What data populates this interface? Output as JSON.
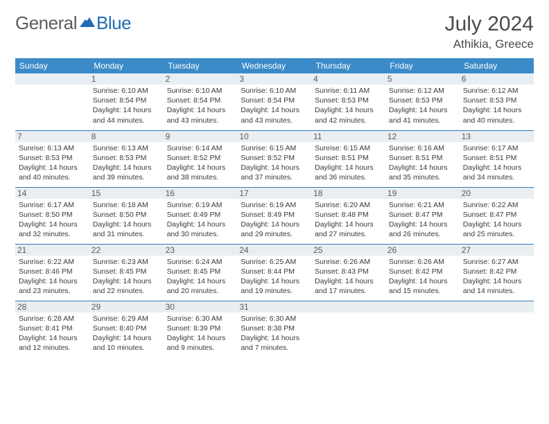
{
  "brand": {
    "text1": "General",
    "text2": "Blue"
  },
  "title": "July 2024",
  "location": "Athikia, Greece",
  "colors": {
    "header_bg": "#3b8bc8",
    "header_text": "#ffffff",
    "daynum_bg": "#e9eef2",
    "row_divider": "#2f7ab5",
    "body_text": "#3a3a3a",
    "brand_gray": "#5c5c5c",
    "brand_blue": "#1f6db3",
    "page_bg": "#ffffff"
  },
  "daysOfWeek": [
    "Sunday",
    "Monday",
    "Tuesday",
    "Wednesday",
    "Thursday",
    "Friday",
    "Saturday"
  ],
  "weeks": [
    [
      null,
      {
        "n": "1",
        "sr": "6:10 AM",
        "ss": "8:54 PM",
        "dl": "14 hours and 44 minutes."
      },
      {
        "n": "2",
        "sr": "6:10 AM",
        "ss": "8:54 PM",
        "dl": "14 hours and 43 minutes."
      },
      {
        "n": "3",
        "sr": "6:10 AM",
        "ss": "8:54 PM",
        "dl": "14 hours and 43 minutes."
      },
      {
        "n": "4",
        "sr": "6:11 AM",
        "ss": "8:53 PM",
        "dl": "14 hours and 42 minutes."
      },
      {
        "n": "5",
        "sr": "6:12 AM",
        "ss": "8:53 PM",
        "dl": "14 hours and 41 minutes."
      },
      {
        "n": "6",
        "sr": "6:12 AM",
        "ss": "8:53 PM",
        "dl": "14 hours and 40 minutes."
      }
    ],
    [
      {
        "n": "7",
        "sr": "6:13 AM",
        "ss": "8:53 PM",
        "dl": "14 hours and 40 minutes."
      },
      {
        "n": "8",
        "sr": "6:13 AM",
        "ss": "8:53 PM",
        "dl": "14 hours and 39 minutes."
      },
      {
        "n": "9",
        "sr": "6:14 AM",
        "ss": "8:52 PM",
        "dl": "14 hours and 38 minutes."
      },
      {
        "n": "10",
        "sr": "6:15 AM",
        "ss": "8:52 PM",
        "dl": "14 hours and 37 minutes."
      },
      {
        "n": "11",
        "sr": "6:15 AM",
        "ss": "8:51 PM",
        "dl": "14 hours and 36 minutes."
      },
      {
        "n": "12",
        "sr": "6:16 AM",
        "ss": "8:51 PM",
        "dl": "14 hours and 35 minutes."
      },
      {
        "n": "13",
        "sr": "6:17 AM",
        "ss": "8:51 PM",
        "dl": "14 hours and 34 minutes."
      }
    ],
    [
      {
        "n": "14",
        "sr": "6:17 AM",
        "ss": "8:50 PM",
        "dl": "14 hours and 32 minutes."
      },
      {
        "n": "15",
        "sr": "6:18 AM",
        "ss": "8:50 PM",
        "dl": "14 hours and 31 minutes."
      },
      {
        "n": "16",
        "sr": "6:19 AM",
        "ss": "8:49 PM",
        "dl": "14 hours and 30 minutes."
      },
      {
        "n": "17",
        "sr": "6:19 AM",
        "ss": "8:49 PM",
        "dl": "14 hours and 29 minutes."
      },
      {
        "n": "18",
        "sr": "6:20 AM",
        "ss": "8:48 PM",
        "dl": "14 hours and 27 minutes."
      },
      {
        "n": "19",
        "sr": "6:21 AM",
        "ss": "8:47 PM",
        "dl": "14 hours and 26 minutes."
      },
      {
        "n": "20",
        "sr": "6:22 AM",
        "ss": "8:47 PM",
        "dl": "14 hours and 25 minutes."
      }
    ],
    [
      {
        "n": "21",
        "sr": "6:22 AM",
        "ss": "8:46 PM",
        "dl": "14 hours and 23 minutes."
      },
      {
        "n": "22",
        "sr": "6:23 AM",
        "ss": "8:45 PM",
        "dl": "14 hours and 22 minutes."
      },
      {
        "n": "23",
        "sr": "6:24 AM",
        "ss": "8:45 PM",
        "dl": "14 hours and 20 minutes."
      },
      {
        "n": "24",
        "sr": "6:25 AM",
        "ss": "8:44 PM",
        "dl": "14 hours and 19 minutes."
      },
      {
        "n": "25",
        "sr": "6:26 AM",
        "ss": "8:43 PM",
        "dl": "14 hours and 17 minutes."
      },
      {
        "n": "26",
        "sr": "6:26 AM",
        "ss": "8:42 PM",
        "dl": "14 hours and 15 minutes."
      },
      {
        "n": "27",
        "sr": "6:27 AM",
        "ss": "8:42 PM",
        "dl": "14 hours and 14 minutes."
      }
    ],
    [
      {
        "n": "28",
        "sr": "6:28 AM",
        "ss": "8:41 PM",
        "dl": "14 hours and 12 minutes."
      },
      {
        "n": "29",
        "sr": "6:29 AM",
        "ss": "8:40 PM",
        "dl": "14 hours and 10 minutes."
      },
      {
        "n": "30",
        "sr": "6:30 AM",
        "ss": "8:39 PM",
        "dl": "14 hours and 9 minutes."
      },
      {
        "n": "31",
        "sr": "6:30 AM",
        "ss": "8:38 PM",
        "dl": "14 hours and 7 minutes."
      },
      null,
      null,
      null
    ]
  ],
  "labels": {
    "sunrise": "Sunrise:",
    "sunset": "Sunset:",
    "daylight": "Daylight:"
  }
}
